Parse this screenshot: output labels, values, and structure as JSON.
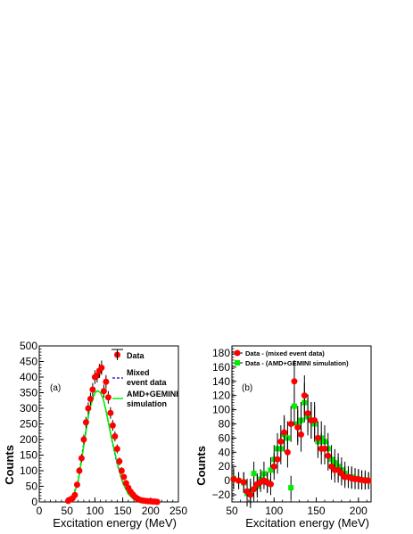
{
  "chart_data": [
    {
      "panel": "(a)",
      "type": "scatter",
      "xlabel": "Excitation energy (MeV)",
      "ylabel": "Counts",
      "xlim": [
        0,
        250
      ],
      "ylim": [
        0,
        500
      ],
      "xticks": [
        "0",
        "50",
        "100",
        "150",
        "200",
        "250"
      ],
      "yticks": [
        "0",
        "50",
        "100",
        "150",
        "200",
        "250",
        "300",
        "350",
        "400",
        "450",
        "500"
      ],
      "legend_position": "top-right",
      "series": [
        {
          "name": "Data",
          "style": "points",
          "color": "#ff0000",
          "x": [
            52,
            56,
            60,
            64,
            68,
            72,
            76,
            80,
            84,
            88,
            92,
            96,
            100,
            104,
            108,
            112,
            116,
            120,
            124,
            128,
            132,
            136,
            140,
            144,
            148,
            152,
            156,
            160,
            164,
            168,
            172,
            176,
            180,
            184,
            188,
            192,
            196,
            200,
            204,
            208,
            212
          ],
          "y": [
            3,
            8,
            12,
            22,
            55,
            100,
            140,
            200,
            255,
            300,
            330,
            360,
            400,
            405,
            420,
            430,
            355,
            385,
            335,
            285,
            245,
            210,
            170,
            130,
            100,
            80,
            60,
            45,
            33,
            24,
            16,
            11,
            7,
            5,
            4,
            3,
            2,
            2,
            1,
            1,
            0
          ]
        },
        {
          "name": "Mixed event data",
          "style": "dashed",
          "color": "#0000cc",
          "x": [
            50,
            60,
            70,
            80,
            90,
            100,
            105,
            110,
            115,
            120,
            130,
            140,
            150,
            160,
            170,
            180,
            190,
            200,
            210
          ],
          "y": [
            1,
            15,
            70,
            190,
            300,
            350,
            355,
            350,
            330,
            290,
            200,
            120,
            60,
            25,
            8,
            3,
            1,
            0,
            0
          ]
        },
        {
          "name": "AMD+GEMINI simulation",
          "style": "solid",
          "color": "#00ee00",
          "x": [
            50,
            60,
            70,
            80,
            90,
            100,
            105,
            110,
            115,
            120,
            130,
            140,
            150,
            160,
            170,
            180,
            190,
            200,
            210
          ],
          "y": [
            1,
            12,
            65,
            180,
            295,
            350,
            356,
            350,
            330,
            292,
            205,
            125,
            62,
            25,
            8,
            2,
            1,
            0,
            0
          ]
        }
      ]
    },
    {
      "panel": "(b)",
      "type": "scatter",
      "xlabel": "Excitation energy (MeV)",
      "ylabel": "Counts",
      "xlim": [
        50,
        215
      ],
      "ylim": [
        -30,
        190
      ],
      "xticks": [
        "50",
        "100",
        "150",
        "200"
      ],
      "yticks": [
        "−20",
        "0",
        "20",
        "40",
        "60",
        "80",
        "100",
        "120",
        "140",
        "160",
        "180"
      ],
      "legend_position": "top-left",
      "series": [
        {
          "name": "Data - (mixed event data)",
          "style": "points",
          "color": "#ff0000",
          "x": [
            52,
            58,
            64,
            68,
            72,
            76,
            80,
            84,
            88,
            92,
            96,
            100,
            104,
            108,
            112,
            116,
            120,
            124,
            128,
            132,
            136,
            140,
            144,
            148,
            152,
            156,
            160,
            164,
            168,
            172,
            176,
            180,
            184,
            188,
            192,
            196,
            200,
            204,
            208,
            212
          ],
          "y": [
            2,
            0,
            -2,
            -15,
            -20,
            -12,
            -5,
            -2,
            0,
            -3,
            -5,
            20,
            30,
            55,
            68,
            40,
            80,
            140,
            75,
            65,
            120,
            95,
            85,
            85,
            60,
            45,
            45,
            35,
            20,
            15,
            15,
            10,
            5,
            5,
            3,
            2,
            2,
            1,
            0,
            0
          ]
        },
        {
          "name": "Data - (AMD+GEMINI simulation)",
          "style": "points",
          "color": "#00ee00",
          "x": [
            52,
            58,
            64,
            68,
            72,
            76,
            80,
            84,
            88,
            92,
            96,
            100,
            104,
            108,
            112,
            116,
            120,
            124,
            128,
            132,
            136,
            140,
            144,
            148,
            152,
            156,
            160,
            164,
            168,
            172,
            176,
            180,
            184,
            188,
            192,
            196,
            200,
            204,
            208,
            212
          ],
          "y": [
            3,
            0,
            -3,
            -18,
            -15,
            10,
            -8,
            2,
            10,
            -2,
            15,
            30,
            45,
            45,
            65,
            60,
            -10,
            105,
            80,
            85,
            110,
            90,
            85,
            80,
            55,
            60,
            55,
            45,
            30,
            25,
            20,
            15,
            10,
            5,
            5,
            3,
            2,
            1,
            1,
            0
          ]
        }
      ]
    }
  ],
  "panel_a": {
    "tag": "(a)",
    "xlabel": "Excitation energy (MeV)",
    "ylabel": "Counts",
    "legend": {
      "data": "Data",
      "mixed_1": "Mixed",
      "mixed_2": "event data",
      "amd_1": "AMD+GEMINI",
      "amd_2": "simulation"
    }
  },
  "panel_b": {
    "tag": "(b)",
    "xlabel": "Excitation energy (MeV)",
    "ylabel": "Counts",
    "legend": {
      "red": "Data - (mixed event data)",
      "green": "Data - (AMD+GEMINI simulation)"
    }
  },
  "colors": {
    "red": "#ff0000",
    "green": "#00ee00",
    "blue": "#0000cc",
    "errbar": "#000000"
  }
}
